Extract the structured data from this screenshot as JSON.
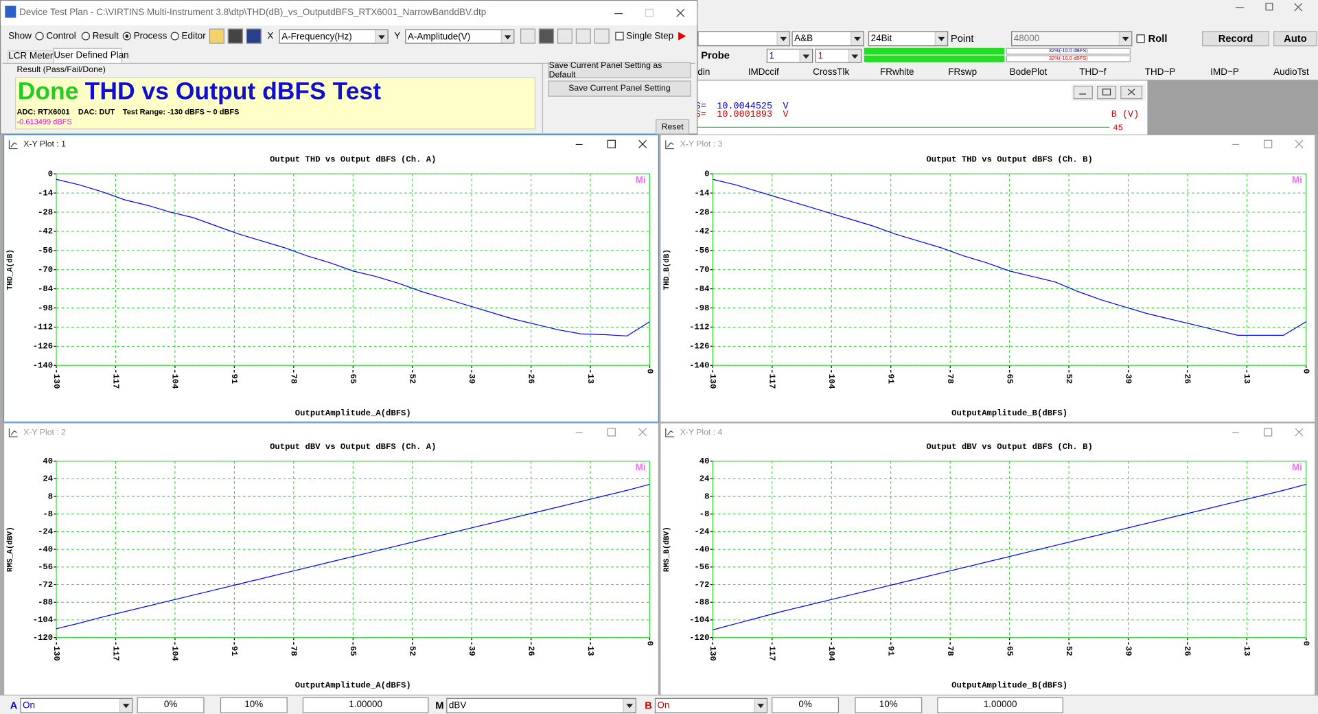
{
  "test_plan_window": {
    "title": "Device Test Plan - C:\\VIRTINS Multi-Instrument 3.8\\dtp\\THD(dB)_vs_OutputdBFS_RTX6001_NarrowBanddBV.dtp",
    "show_label": "Show",
    "show_options": [
      "Control",
      "Result",
      "Process",
      "Editor"
    ],
    "x_label": "X",
    "x_value": "A-Frequency(Hz)",
    "y_label": "Y",
    "y_value": "A-Amplitude(V)",
    "single_step": "Single Step",
    "tabs": [
      "LCR Meter",
      "User Defined Plan"
    ],
    "result_label": "Result (Pass/Fail/Done)",
    "status": "Done",
    "test_name": "THD vs Output dBFS Test",
    "adc": "ADC: RTX6001",
    "dac": "DAC: DUT",
    "test_range": "Test Range: -130 dBFS ~ 0 dBFS",
    "reading": "-0.613499 dBFS",
    "buttons": [
      "Save Current Panel Setting as Default",
      "Save Current Panel Setting"
    ],
    "reset": "Reset"
  },
  "main_window": {
    "channel_mode": "A&B",
    "bit_depth": "24Bit",
    "point_label": "Point",
    "point_value": "48000",
    "roll": "Roll",
    "record": "Record",
    "auto": "Auto",
    "probe": "Probe",
    "probe_a": "1",
    "probe_b": "1",
    "level_a": "32%(-10.0 dBFS)",
    "level_b": "32%(-10.0 dBFS)",
    "tabs": [
      "din",
      "IMDccif",
      "CrossTlk",
      "FRwhite",
      "FRswp",
      "BodePlot",
      "THD~f",
      "THD~P",
      "IMD~P",
      "AudioTst"
    ],
    "readout_a": [
      "S=",
      "10.0044525",
      "V"
    ],
    "readout_b": [
      "S=",
      "10.0001893",
      "V"
    ],
    "axis_b": "B (V)",
    "axis_b_top": "45"
  },
  "status_bar": {
    "a_label": "A",
    "a_state": "On",
    "a_offset": "0%",
    "a_step": "10%",
    "a_gain": "1.00000",
    "m_label": "M",
    "m_unit": "dBV",
    "b_label": "B",
    "b_state": "On",
    "b_offset": "0%",
    "b_step": "10%",
    "b_gain": "1.00000"
  },
  "chart_data": [
    {
      "type": "line",
      "window_title": "X-Y Plot : 1",
      "title": "Output THD vs Output dBFS (Ch. A)",
      "x_label": "OutputAmplitude_A(dBFS)",
      "y_label": "THD_A(dB)",
      "badge": "Mi",
      "x": [
        -130,
        -125,
        -120,
        -115,
        -110,
        -105,
        -100,
        -95,
        -90,
        -85,
        -80,
        -75,
        -70,
        -65,
        -60,
        -55,
        -50,
        -45,
        -40,
        -35,
        -30,
        -25,
        -20,
        -15,
        -10,
        -5,
        0
      ],
      "series": [
        {
          "color": "#0000ff",
          "values": [
            -4,
            -8,
            -13,
            -19,
            -23,
            -28,
            -32,
            -38,
            -44,
            -49,
            -54,
            -60,
            -65,
            -71,
            -75,
            -80,
            -86,
            -91,
            -96,
            -101,
            -106,
            -110,
            -114,
            -117,
            -117.5,
            -118.5,
            -108
          ]
        }
      ],
      "xlim": [
        -130,
        0
      ],
      "xticks": [
        -130,
        -117,
        -104,
        -91,
        -78,
        -65,
        -52,
        -39,
        -26,
        -13,
        0
      ],
      "ylim": [
        -140,
        0
      ],
      "yticks": [
        -140,
        -126,
        -112,
        -98,
        -84,
        -70,
        -56,
        -42,
        -28,
        -14,
        0
      ],
      "grid": true
    },
    {
      "type": "line",
      "window_title": "X-Y Plot : 2",
      "title": "Output dBV vs Output dBFS (Ch. A)",
      "x_label": "OutputAmplitude_A(dBFS)",
      "y_label": "RMS_A(dBV)",
      "badge": "Mi",
      "x": [
        -130,
        -125,
        -120,
        -115,
        -110,
        -105,
        -100,
        -95,
        -90,
        -85,
        -80,
        -75,
        -70,
        -65,
        -60,
        -55,
        -50,
        -45,
        -40,
        -35,
        -30,
        -25,
        -20,
        -15,
        -10,
        -5,
        0
      ],
      "series": [
        {
          "color": "#0000ff",
          "values": [
            -112,
            -107,
            -101.5,
            -96.5,
            -91.5,
            -86.5,
            -81.5,
            -76.5,
            -71.5,
            -66.5,
            -61.5,
            -56.5,
            -51.5,
            -46.5,
            -41.5,
            -36.5,
            -31.5,
            -26.5,
            -21.5,
            -16.5,
            -11.5,
            -6.5,
            -1.5,
            3.5,
            8.5,
            13.5,
            19
          ]
        }
      ],
      "xlim": [
        -130,
        0
      ],
      "xticks": [
        -130,
        -117,
        -104,
        -91,
        -78,
        -65,
        -52,
        -39,
        -26,
        -13,
        0
      ],
      "ylim": [
        -120,
        40
      ],
      "yticks": [
        -120,
        -104,
        -88,
        -72,
        -56,
        -40,
        -24,
        -8,
        8,
        24,
        40
      ],
      "grid": true
    },
    {
      "type": "line",
      "window_title": "X-Y Plot : 3",
      "title": "Output THD vs Output dBFS (Ch. B)",
      "x_label": "OutputAmplitude_B(dBFS)",
      "y_label": "THD_B(dB)",
      "badge": "Mi",
      "x": [
        -130,
        -125,
        -120,
        -115,
        -110,
        -105,
        -100,
        -95,
        -90,
        -85,
        -80,
        -75,
        -70,
        -65,
        -60,
        -55,
        -50,
        -45,
        -40,
        -35,
        -30,
        -25,
        -20,
        -15,
        -10,
        -5,
        0
      ],
      "series": [
        {
          "color": "#0000ff",
          "values": [
            -4,
            -8,
            -13,
            -18,
            -23,
            -28,
            -33,
            -38,
            -44,
            -49,
            -54,
            -60,
            -65,
            -71,
            -75,
            -79,
            -86,
            -92,
            -97,
            -102,
            -106,
            -110,
            -114,
            -118,
            -118,
            -118,
            -108
          ]
        }
      ],
      "xlim": [
        -130,
        0
      ],
      "xticks": [
        -130,
        -117,
        -104,
        -91,
        -78,
        -65,
        -52,
        -39,
        -26,
        -13,
        0
      ],
      "ylim": [
        -140,
        0
      ],
      "yticks": [
        -140,
        -126,
        -112,
        -98,
        -84,
        -70,
        -56,
        -42,
        -28,
        -14,
        0
      ],
      "grid": true
    },
    {
      "type": "line",
      "window_title": "X-Y Plot : 4",
      "title": "Output dBV vs Output dBFS (Ch. B)",
      "x_label": "OutputAmplitude_B(dBFS)",
      "y_label": "RMS_B(dBV)",
      "badge": "Mi",
      "x": [
        -130,
        -125,
        -120,
        -115,
        -110,
        -105,
        -100,
        -95,
        -90,
        -85,
        -80,
        -75,
        -70,
        -65,
        -60,
        -55,
        -50,
        -45,
        -40,
        -35,
        -30,
        -25,
        -20,
        -15,
        -10,
        -5,
        0
      ],
      "series": [
        {
          "color": "#0000ff",
          "values": [
            -113,
            -107.5,
            -102,
            -96.5,
            -91.5,
            -86.5,
            -81.5,
            -76.5,
            -71.5,
            -66.5,
            -61.5,
            -56.5,
            -51.5,
            -46.5,
            -41.5,
            -36.5,
            -31.5,
            -26.5,
            -21.5,
            -16.5,
            -11.5,
            -6.5,
            -1.5,
            3.5,
            8.5,
            13.5,
            19
          ]
        }
      ],
      "xlim": [
        -130,
        0
      ],
      "xticks": [
        -130,
        -117,
        -104,
        -91,
        -78,
        -65,
        -52,
        -39,
        -26,
        -13,
        0
      ],
      "ylim": [
        -120,
        40
      ],
      "yticks": [
        -120,
        -104,
        -88,
        -72,
        -56,
        -40,
        -24,
        -8,
        8,
        24,
        40
      ],
      "grid": true
    }
  ]
}
